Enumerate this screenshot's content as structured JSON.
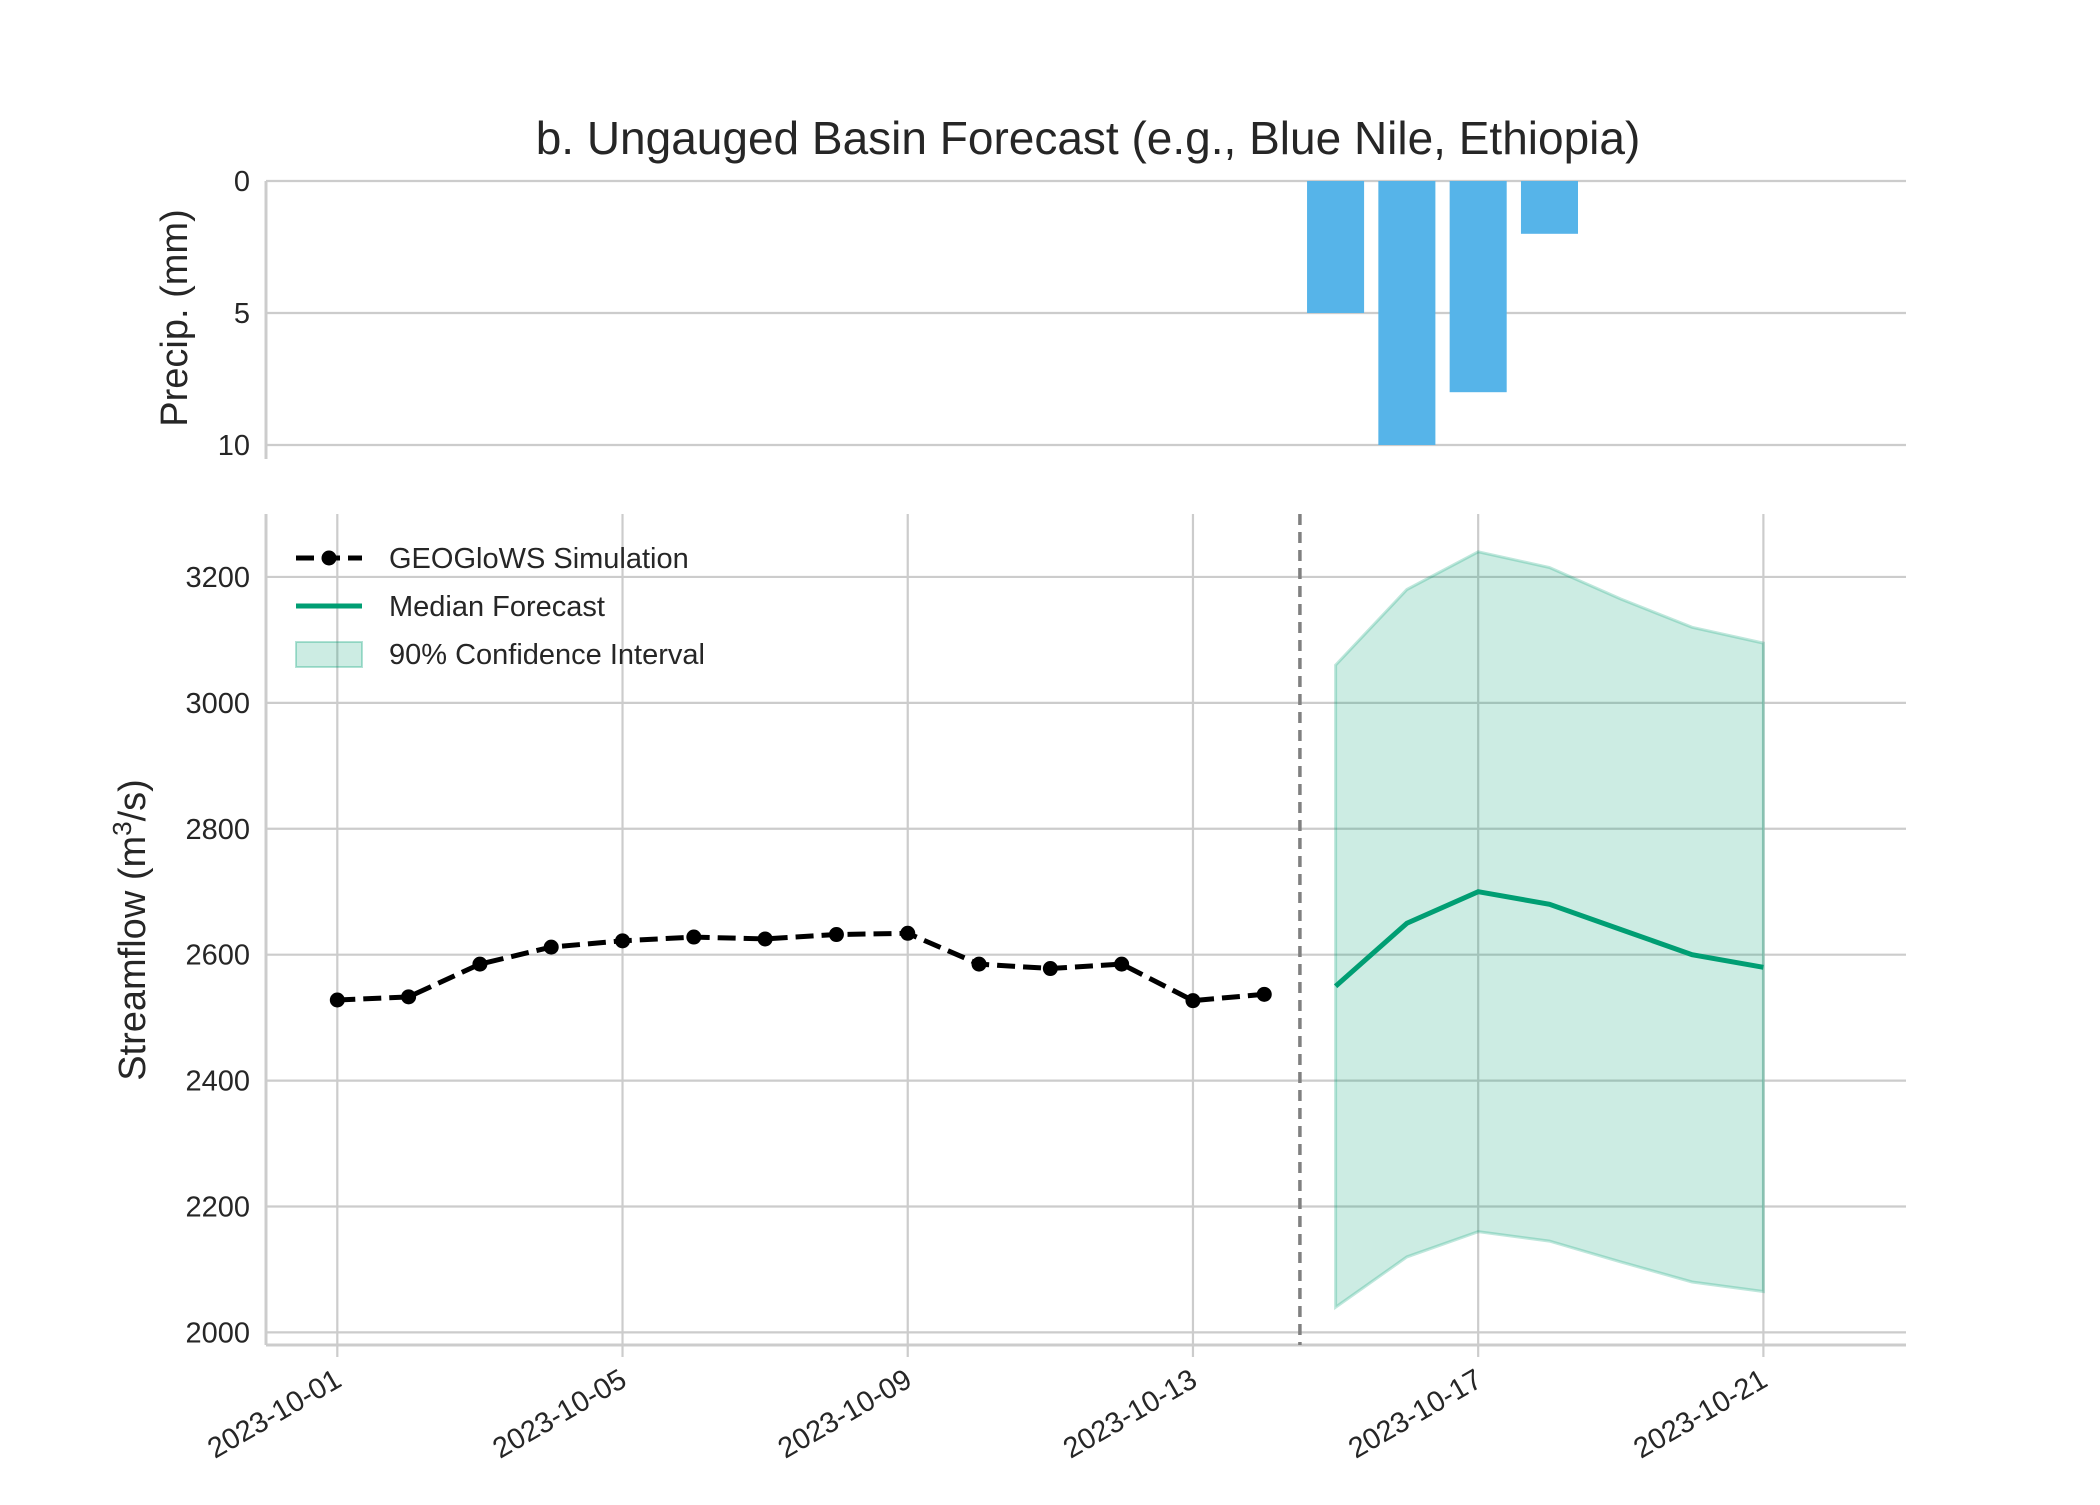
{
  "chart_data": {
    "type": "composite",
    "title": "b. Ungauged Basin Forecast (e.g., Blue Nile, Ethiopia)",
    "colors": {
      "precip": "#56b4e9",
      "simulation": "#000000",
      "forecast": "#009e73",
      "interval_fill": "#009e73",
      "divider": "#808080",
      "grid": "#cccccc"
    },
    "precip_panel": {
      "type": "bar",
      "ylabel": "Precip. (mm)",
      "ylim": [
        10,
        0
      ],
      "inverted_y": true,
      "yticks": [
        "0",
        "5",
        "10"
      ],
      "x": [
        "2023-10-15",
        "2023-10-16",
        "2023-10-17",
        "2023-10-18"
      ],
      "values": [
        5,
        10,
        8,
        2
      ]
    },
    "flow_panel": {
      "ylabel_main": "Streamflow (m",
      "ylabel_sup": "3",
      "ylabel_tail": "/s)",
      "ylim": [
        1980,
        3300
      ],
      "yticks": [
        "2000",
        "2200",
        "2400",
        "2600",
        "2800",
        "3000",
        "3200"
      ],
      "xlim": [
        "2023-09-30",
        "2023-10-23"
      ],
      "xticks": [
        "2023-10-01",
        "2023-10-05",
        "2023-10-09",
        "2023-10-13",
        "2023-10-17",
        "2023-10-21"
      ],
      "forecast_start": "2023-10-14T12:00",
      "legend_position": "upper-left",
      "series": [
        {
          "name": "GEOGloWS Simulation",
          "type": "line",
          "style": "dashed-with-markers",
          "x": [
            "2023-10-01",
            "2023-10-02",
            "2023-10-03",
            "2023-10-04",
            "2023-10-05",
            "2023-10-06",
            "2023-10-07",
            "2023-10-08",
            "2023-10-09",
            "2023-10-10",
            "2023-10-11",
            "2023-10-12",
            "2023-10-13",
            "2023-10-14"
          ],
          "values": [
            2528,
            2533,
            2585,
            2612,
            2622,
            2628,
            2625,
            2632,
            2634,
            2585,
            2578,
            2585,
            2527,
            2537
          ]
        },
        {
          "name": "Median Forecast",
          "type": "line",
          "x": [
            "2023-10-15",
            "2023-10-16",
            "2023-10-17",
            "2023-10-18",
            "2023-10-19",
            "2023-10-20",
            "2023-10-21"
          ],
          "values": [
            2550,
            2650,
            2700,
            2680,
            2640,
            2600,
            2580
          ]
        },
        {
          "name": "90% Confidence Interval",
          "type": "area",
          "x": [
            "2023-10-15",
            "2023-10-16",
            "2023-10-17",
            "2023-10-18",
            "2023-10-19",
            "2023-10-20",
            "2023-10-21"
          ],
          "lower": [
            2040,
            2120,
            2160,
            2145,
            2112,
            2080,
            2065
          ],
          "upper": [
            3060,
            3180,
            3240,
            3215,
            3165,
            3120,
            3095
          ]
        }
      ]
    }
  }
}
